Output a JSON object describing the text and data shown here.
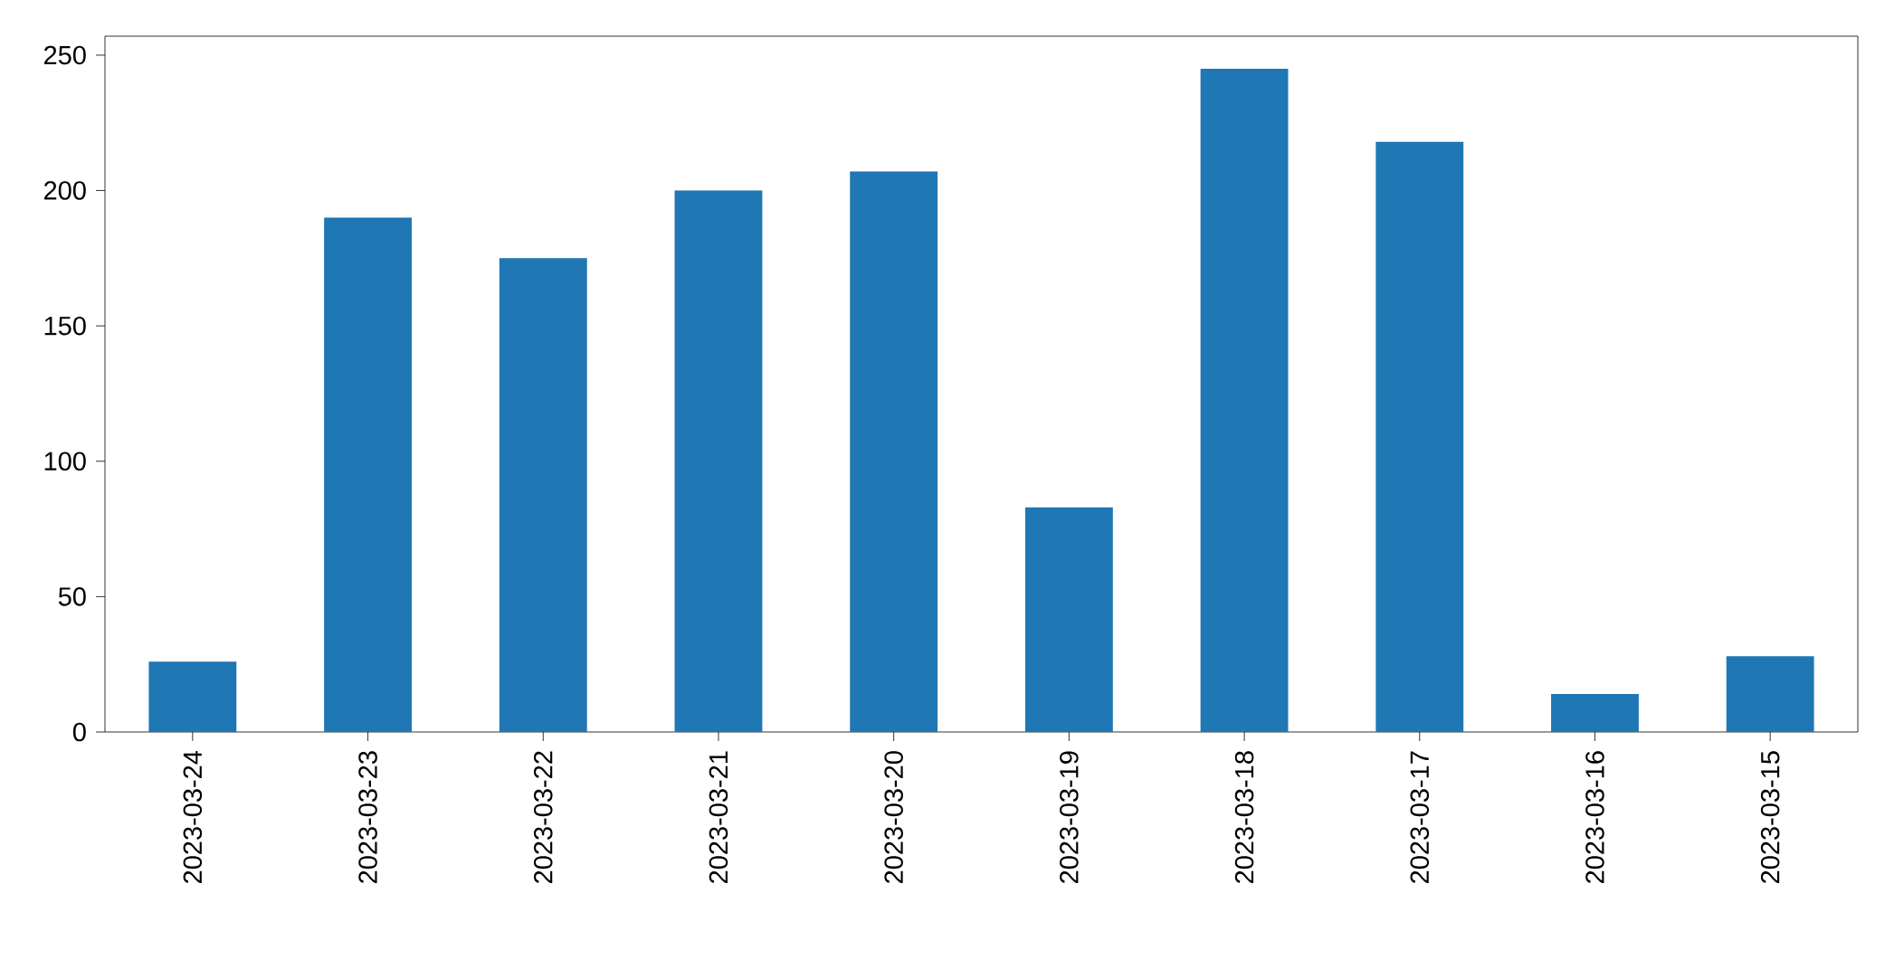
{
  "chart_data": {
    "type": "bar",
    "categories": [
      "2023-03-24",
      "2023-03-23",
      "2023-03-22",
      "2023-03-21",
      "2023-03-20",
      "2023-03-19",
      "2023-03-18",
      "2023-03-17",
      "2023-03-16",
      "2023-03-15"
    ],
    "values": [
      26,
      190,
      175,
      200,
      207,
      83,
      245,
      218,
      14,
      28
    ],
    "color": "#1f77b4",
    "ylim": [
      0,
      257
    ],
    "yticks": [
      0,
      50,
      100,
      150,
      200,
      250
    ]
  }
}
